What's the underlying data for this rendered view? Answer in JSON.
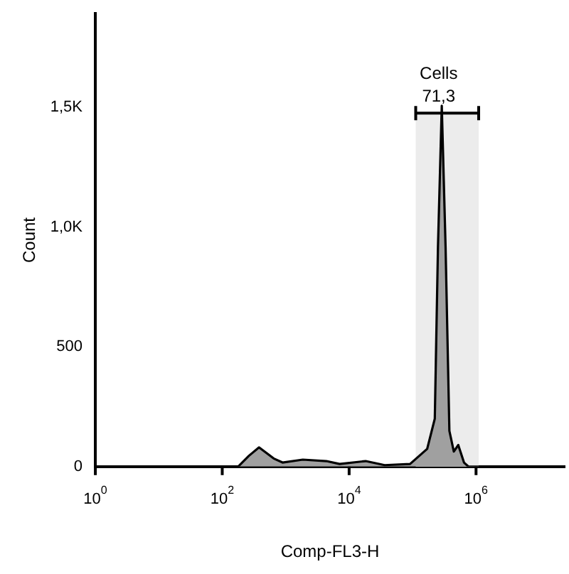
{
  "chart_data": {
    "type": "area",
    "xlabel": "Comp-FL3-H",
    "ylabel": "Count",
    "x": [
      1,
      100,
      178,
      263,
      380,
      646,
      891,
      1862,
      4365,
      7079,
      18197,
      36308,
      91201,
      169824,
      223872,
      251189,
      288403,
      331131,
      380189,
      446684,
      524807,
      645654,
      758578,
      25000000
    ],
    "values": [
      0,
      0,
      0,
      45,
      80,
      34,
      17,
      29,
      23,
      11,
      23,
      6,
      11,
      74,
      200,
      916,
      1506,
      916,
      149,
      63,
      90,
      17,
      0,
      0
    ],
    "color": "#a0a0a0",
    "log": "x",
    "xlim": [
      1,
      25000000
    ],
    "xticks": [
      {
        "value": 1,
        "label": "10$^{0}$"
      },
      {
        "value": 100,
        "label": "10$^{2}$"
      },
      {
        "value": 10000,
        "label": "10$^{4}$"
      },
      {
        "value": 1000000,
        "label": "10$^{6}$"
      }
    ],
    "ylim": [
      0,
      1890
    ],
    "yticks": [
      0,
      500,
      {
        "value": 1000,
        "label": "1,0K"
      },
      {
        "value": 1500,
        "label": "1,5K"
      }
    ],
    "grid": false,
    "legend": false,
    "marker": "none",
    "bands": [
      {
        "axis": "x",
        "from": 112000,
        "to": 1100000,
        "label": "Cells",
        "color": "#ececec"
      }
    ],
    "annotations": [
      "71,3"
    ]
  }
}
